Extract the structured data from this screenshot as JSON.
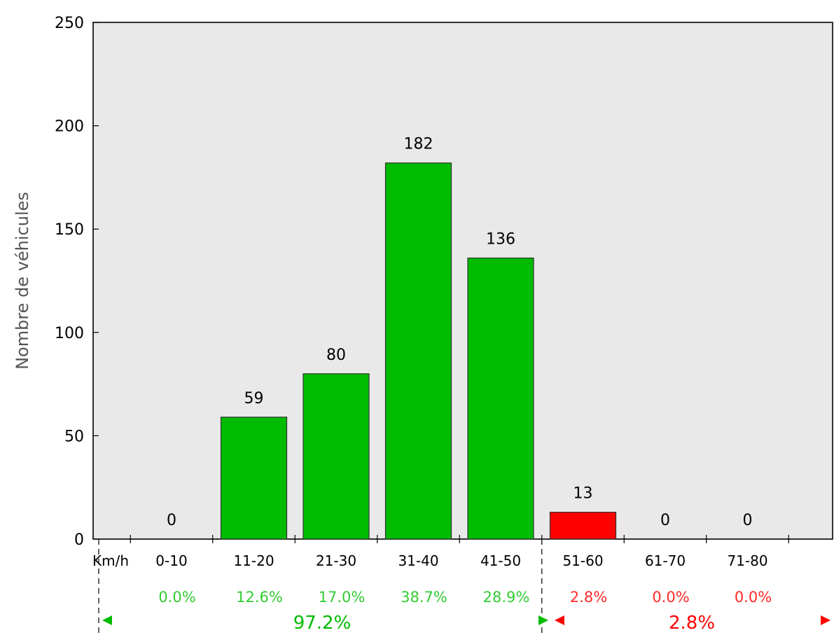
{
  "chart_data": {
    "type": "bar",
    "ylabel": "Nombre de véhicules",
    "xunit_label": "Km/h",
    "ylim": [
      0,
      250
    ],
    "yticks": [
      0,
      50,
      100,
      150,
      200,
      250
    ],
    "categories": [
      "0-10",
      "11-20",
      "21-30",
      "31-40",
      "41-50",
      "51-60",
      "61-70",
      "71-80"
    ],
    "values": [
      0,
      59,
      80,
      182,
      136,
      13,
      0,
      0
    ],
    "value_labels": [
      "0",
      "59",
      "80",
      "182",
      "136",
      "13",
      "0",
      "0"
    ],
    "percentages": [
      "0.0%",
      "12.6%",
      "17.0%",
      "38.7%",
      "28.9%",
      "2.8%",
      "0.0%",
      "0.0%"
    ],
    "groups": [
      {
        "total_label": "97.2%",
        "color": "#00bb00",
        "first_index": 0,
        "last_index": 4
      },
      {
        "total_label": "2.8%",
        "color": "#ff0000",
        "first_index": 5,
        "last_index": 7
      }
    ],
    "bar_colors": [
      "#00bb00",
      "#00bb00",
      "#00bb00",
      "#00bb00",
      "#00bb00",
      "#ff0000",
      "#ff0000",
      "#ff0000"
    ],
    "percent_colors": [
      "#33cc33",
      "#33cc33",
      "#33cc33",
      "#33cc33",
      "#33cc33",
      "#ff2a2a",
      "#ff2a2a",
      "#ff2a2a"
    ],
    "plot_background": "#e9e9e9",
    "grid": false
  }
}
